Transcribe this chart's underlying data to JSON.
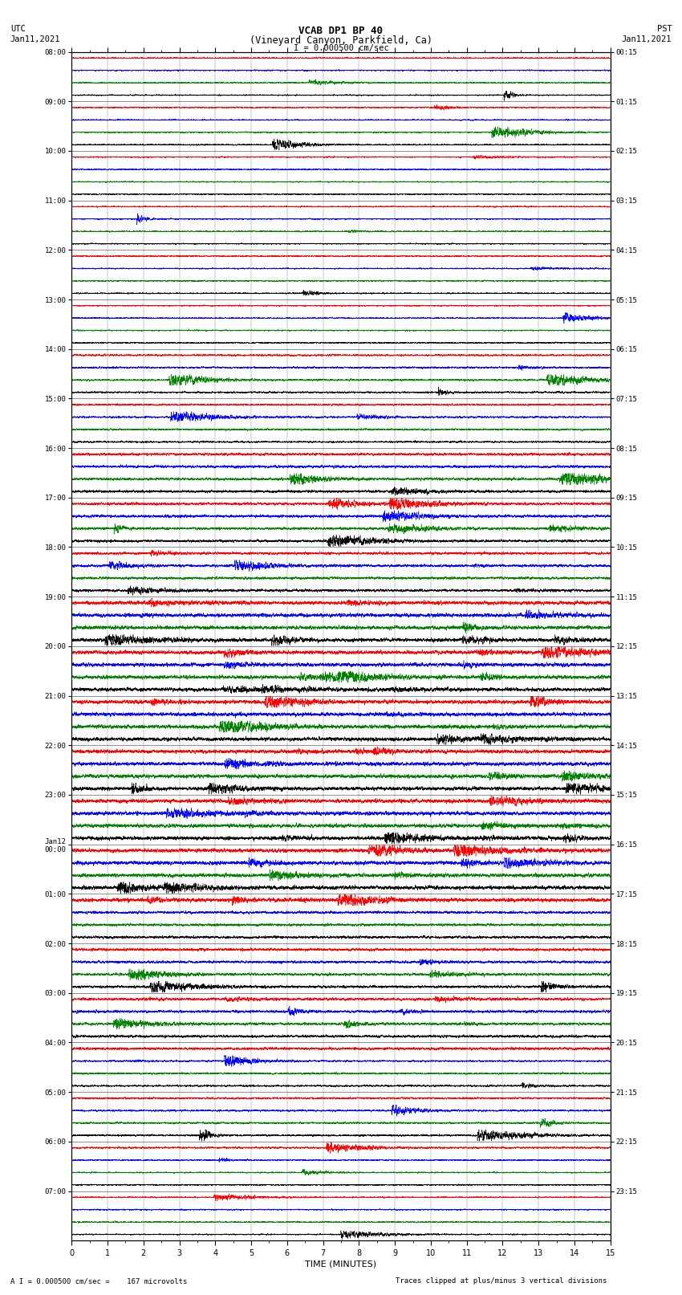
{
  "title_line1": "VCAB DP1 BP 40",
  "title_line2": "(Vineyard Canyon, Parkfield, Ca)",
  "scale_label": "I = 0.000500 cm/sec",
  "left_header": "UTC",
  "left_date": "Jan11,2021",
  "right_header": "PST",
  "right_date": "Jan11,2021",
  "bottom_note1": "A I = 0.000500 cm/sec =    167 microvolts",
  "bottom_note2": "Traces clipped at plus/minus 3 vertical divisions",
  "xlabel": "TIME (MINUTES)",
  "n_rows": 96,
  "traces_per_row": 4,
  "row_colors": [
    "red",
    "blue",
    "green",
    "black"
  ],
  "time_minutes": 15,
  "left_times_utc": [
    "08:00",
    "",
    "",
    "",
    "09:00",
    "",
    "",
    "",
    "10:00",
    "",
    "",
    "",
    "11:00",
    "",
    "",
    "",
    "12:00",
    "",
    "",
    "",
    "13:00",
    "",
    "",
    "",
    "14:00",
    "",
    "",
    "",
    "15:00",
    "",
    "",
    "",
    "16:00",
    "",
    "",
    "",
    "17:00",
    "",
    "",
    "",
    "18:00",
    "",
    "",
    "",
    "19:00",
    "",
    "",
    "",
    "20:00",
    "",
    "",
    "",
    "21:00",
    "",
    "",
    "",
    "22:00",
    "",
    "",
    "",
    "23:00",
    "",
    "",
    "",
    "Jan12\n00:00",
    "",
    "",
    "",
    "01:00",
    "",
    "",
    "",
    "02:00",
    "",
    "",
    "",
    "03:00",
    "",
    "",
    "",
    "04:00",
    "",
    "",
    "",
    "05:00",
    "",
    "",
    "",
    "06:00",
    "",
    "",
    "",
    "07:00",
    "",
    "",
    ""
  ],
  "right_times_pst": [
    "00:15",
    "",
    "",
    "",
    "01:15",
    "",
    "",
    "",
    "02:15",
    "",
    "",
    "",
    "03:15",
    "",
    "",
    "",
    "04:15",
    "",
    "",
    "",
    "05:15",
    "",
    "",
    "",
    "06:15",
    "",
    "",
    "",
    "07:15",
    "",
    "",
    "",
    "08:15",
    "",
    "",
    "",
    "09:15",
    "",
    "",
    "",
    "10:15",
    "",
    "",
    "",
    "11:15",
    "",
    "",
    "",
    "12:15",
    "",
    "",
    "",
    "13:15",
    "",
    "",
    "",
    "14:15",
    "",
    "",
    "",
    "15:15",
    "",
    "",
    "",
    "16:15",
    "",
    "",
    "",
    "17:15",
    "",
    "",
    "",
    "18:15",
    "",
    "",
    "",
    "19:15",
    "",
    "",
    "",
    "20:15",
    "",
    "",
    "",
    "21:15",
    "",
    "",
    "",
    "22:15",
    "",
    "",
    "",
    "23:15",
    "",
    "",
    ""
  ],
  "bg_color": "#ffffff",
  "trace_linewidth": 0.35,
  "noise_base": 0.12,
  "clip_level": 1.0
}
